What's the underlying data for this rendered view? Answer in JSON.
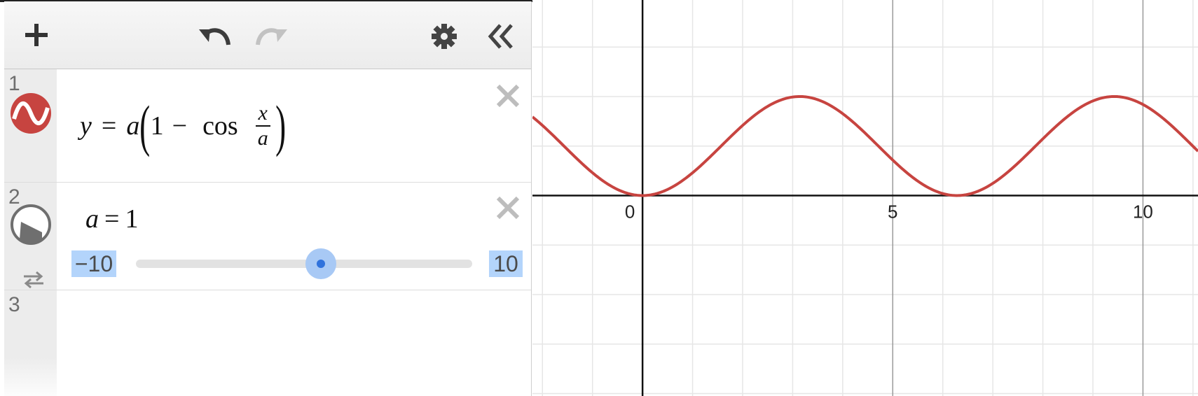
{
  "toolbar": {
    "add_icon": "plus-icon",
    "undo_icon": "undo-icon",
    "redo_icon": "redo-icon",
    "settings_icon": "gear-icon",
    "collapse_icon": "double-chevron-left-icon"
  },
  "expressions": [
    {
      "number": "1",
      "icon": "graph-curve-icon",
      "color": "#c74440",
      "latex_parts": {
        "y": "y",
        "eq": "=",
        "a": "a",
        "one": "1",
        "minus": "−",
        "cos": "cos",
        "num": "x",
        "den": "a"
      }
    },
    {
      "number": "2",
      "icon": "slider-play-icon",
      "loop_icon": "loop-icon",
      "text": {
        "var": "a",
        "eq": "=",
        "val": "1"
      },
      "slider": {
        "min": "−10",
        "max": "10",
        "value": 1
      }
    },
    {
      "number": "3"
    }
  ],
  "graph": {
    "x_tick_labels": [
      "0",
      "5",
      "10"
    ],
    "curve_color": "#c74440",
    "grid": true
  },
  "chart_data": {
    "type": "line",
    "title": "",
    "function": "y = a(1 - cos(x/a))",
    "params": {
      "a": 1
    },
    "xlim": [
      -2.2,
      11.1
    ],
    "ylim": [
      -4.05,
      3.95
    ],
    "x_ticks": [
      0,
      5,
      10
    ],
    "grid": true,
    "series": [
      {
        "color": "#c74440"
      }
    ]
  }
}
